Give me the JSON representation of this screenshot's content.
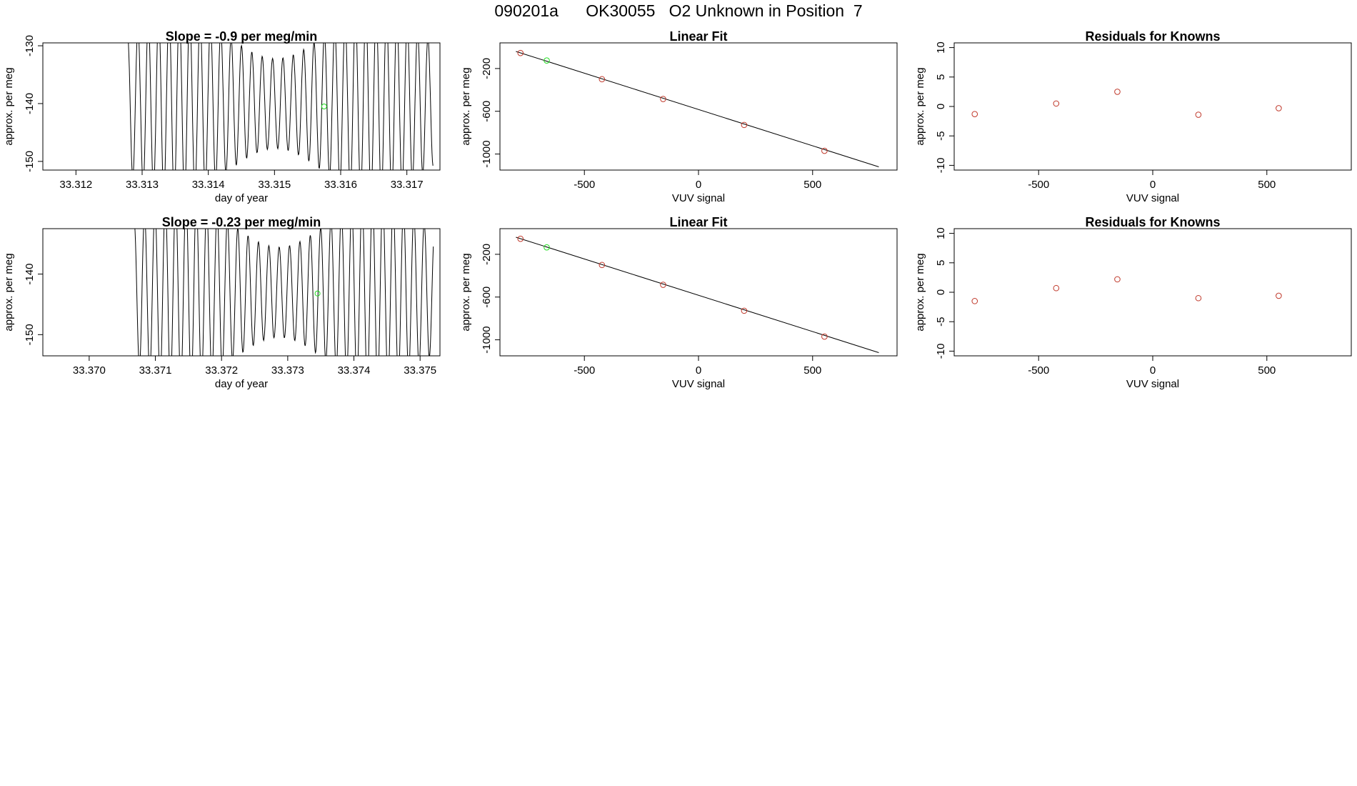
{
  "page": {
    "title": "090201a      OK30055   O2 Unknown in Position  7"
  },
  "colors": {
    "axis": "#000000",
    "line": "#000000",
    "known_point": "#c0392b",
    "unknown_point": "#22dd22"
  },
  "chart_data": [
    {
      "type": "line",
      "title": "Slope =  -0.9  per meg/min",
      "xlabel": "day of year",
      "ylabel": "approx. per meg",
      "xlim": [
        33.3115,
        33.3175
      ],
      "ylim": [
        -151.5,
        -129.5
      ],
      "xticks": [
        33.312,
        33.313,
        33.314,
        33.315,
        33.316,
        33.317
      ],
      "xtick_labels": [
        "33.312",
        "33.313",
        "33.314",
        "33.315",
        "33.316",
        "33.317"
      ],
      "yticks": [
        -150,
        -140,
        -130
      ],
      "ytick_labels": [
        "-150",
        "-140",
        "-130"
      ],
      "series": [
        {
          "x_start": 33.31278,
          "x_end": 33.3174,
          "period": 0.0001565,
          "center": -140,
          "amplitude": 12,
          "values": []
        }
      ],
      "unknown_point": {
        "x": 33.31575,
        "y": -140.5
      },
      "grid": false
    },
    {
      "type": "scatter",
      "title": "Linear Fit",
      "xlabel": "VUV signal",
      "ylabel": "approx. per meg",
      "xlim": [
        -870,
        870
      ],
      "ylim": [
        -1150,
        40
      ],
      "xticks": [
        -500,
        0,
        500
      ],
      "xtick_labels": [
        "-500",
        "0",
        "500"
      ],
      "yticks": [
        -1000,
        -600,
        -200
      ],
      "ytick_labels": [
        "-1000",
        "-600",
        "-200"
      ],
      "known_points": {
        "x": [
          -780,
          -423,
          -155,
          200,
          552
        ],
        "y": [
          -55,
          -300,
          -485,
          -728,
          -970
        ]
      },
      "unknown_points": {
        "x": [
          -665
        ],
        "y": [
          -125
        ]
      },
      "fit_line": {
        "x": [
          -800,
          790
        ],
        "y": [
          -40,
          -1120
        ]
      },
      "grid": false
    },
    {
      "type": "scatter",
      "title": "Residuals for Knowns",
      "xlabel": "VUV signal",
      "ylabel": "approx. per meg",
      "xlim": [
        -870,
        870
      ],
      "ylim": [
        -10.8,
        10.8
      ],
      "xticks": [
        -500,
        0,
        500
      ],
      "xtick_labels": [
        "-500",
        "0",
        "500"
      ],
      "yticks": [
        -10,
        -5,
        0,
        5,
        10
      ],
      "ytick_labels": [
        "-10",
        "-5",
        "0",
        "5",
        "10"
      ],
      "known_points": {
        "x": [
          -780,
          -423,
          -155,
          200,
          552
        ],
        "y": [
          -1.3,
          0.5,
          2.5,
          -1.4,
          -0.3
        ]
      },
      "grid": false
    },
    {
      "type": "line",
      "title": "Slope =  -0.23  per meg/min",
      "xlabel": "day of year",
      "ylabel": "approx. per meg",
      "xlim": [
        33.3693,
        33.3753
      ],
      "ylim": [
        -153.5,
        -132.5
      ],
      "xticks": [
        33.37,
        33.371,
        33.372,
        33.373,
        33.374,
        33.375
      ],
      "xtick_labels": [
        "33.370",
        "33.371",
        "33.372",
        "33.373",
        "33.374",
        "33.375"
      ],
      "yticks": [
        -150,
        -140
      ],
      "ytick_labels": [
        "-150",
        "-140"
      ],
      "series": [
        {
          "x_start": 33.37068,
          "x_end": 33.3752,
          "period": 0.0001565,
          "center": -143,
          "amplitude": 11.5,
          "values": []
        }
      ],
      "unknown_point": {
        "x": 33.37345,
        "y": -143.2
      },
      "grid": false
    },
    {
      "type": "scatter",
      "title": "Linear Fit",
      "xlabel": "VUV signal",
      "ylabel": "approx. per meg",
      "xlim": [
        -870,
        870
      ],
      "ylim": [
        -1150,
        40
      ],
      "xticks": [
        -500,
        0,
        500
      ],
      "xtick_labels": [
        "-500",
        "0",
        "500"
      ],
      "yticks": [
        -1000,
        -600,
        -200
      ],
      "ytick_labels": [
        "-1000",
        "-600",
        "-200"
      ],
      "known_points": {
        "x": [
          -780,
          -423,
          -155,
          200,
          552
        ],
        "y": [
          -55,
          -300,
          -485,
          -728,
          -970
        ]
      },
      "unknown_points": {
        "x": [
          -665
        ],
        "y": [
          -135
        ]
      },
      "fit_line": {
        "x": [
          -800,
          790
        ],
        "y": [
          -40,
          -1120
        ]
      },
      "grid": false
    },
    {
      "type": "scatter",
      "title": "Residuals for Knowns",
      "xlabel": "VUV signal",
      "ylabel": "approx. per meg",
      "xlim": [
        -870,
        870
      ],
      "ylim": [
        -10.8,
        10.8
      ],
      "xticks": [
        -500,
        0,
        500
      ],
      "xtick_labels": [
        "-500",
        "0",
        "500"
      ],
      "yticks": [
        -10,
        -5,
        0,
        5,
        10
      ],
      "ytick_labels": [
        "-10",
        "-5",
        "0",
        "5",
        "10"
      ],
      "known_points": {
        "x": [
          -780,
          -423,
          -155,
          200,
          552
        ],
        "y": [
          -1.5,
          0.7,
          2.2,
          -1.0,
          -0.6
        ]
      },
      "grid": false
    }
  ]
}
